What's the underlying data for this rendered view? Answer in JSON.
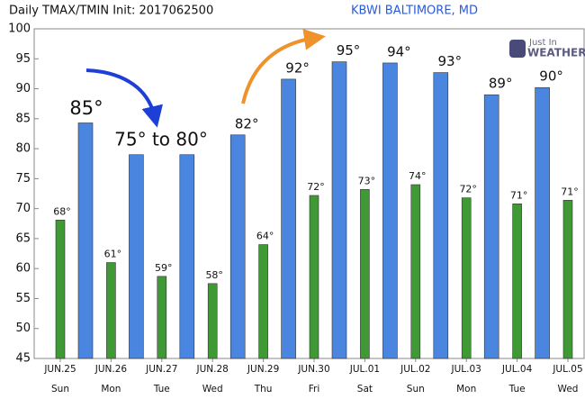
{
  "chart_data": {
    "type": "bar",
    "title": "Daily TMAX/TMIN Init: 2017062500",
    "subtitle": "KBWI BALTIMORE, MD",
    "logo": {
      "line1": "Just In",
      "line2": "WEATHER"
    },
    "categories": [
      "JUN.25",
      "JUN.26",
      "JUN.27",
      "JUN.28",
      "JUN.29",
      "JUN.30",
      "JUL.01",
      "JUL.02",
      "JUL.03",
      "JUL.04",
      "JUL.05"
    ],
    "weekdays": [
      "Sun",
      "Mon",
      "Tue",
      "Wed",
      "Thu",
      "Fri",
      "Sat",
      "Sun",
      "Mon",
      "Tue",
      "Wed"
    ],
    "series": [
      {
        "color": "#4a86e0",
        "values": [
          84.3,
          79,
          79,
          82.3,
          91.6,
          94.5,
          94.3,
          92.7,
          89,
          90.2,
          null
        ],
        "value_labels": [
          null,
          null,
          null,
          "82°",
          "92°",
          "95°",
          "94°",
          "93°",
          "89°",
          "90°",
          null
        ]
      },
      {
        "color": "#3f9a35",
        "values": [
          68.1,
          61,
          58.7,
          57.5,
          64,
          72.2,
          73.2,
          74,
          71.8,
          70.8,
          71.4
        ],
        "value_labels": [
          "68°",
          "61°",
          "59°",
          "58°",
          "64°",
          "72°",
          "73°",
          "74°",
          "72°",
          "71°",
          "71°"
        ]
      }
    ],
    "annotations": [
      "85°",
      "75° to 80°"
    ],
    "ylim": [
      45,
      100
    ],
    "yticks": [
      45,
      50,
      55,
      60,
      65,
      70,
      75,
      80,
      85,
      90,
      95,
      100
    ]
  }
}
